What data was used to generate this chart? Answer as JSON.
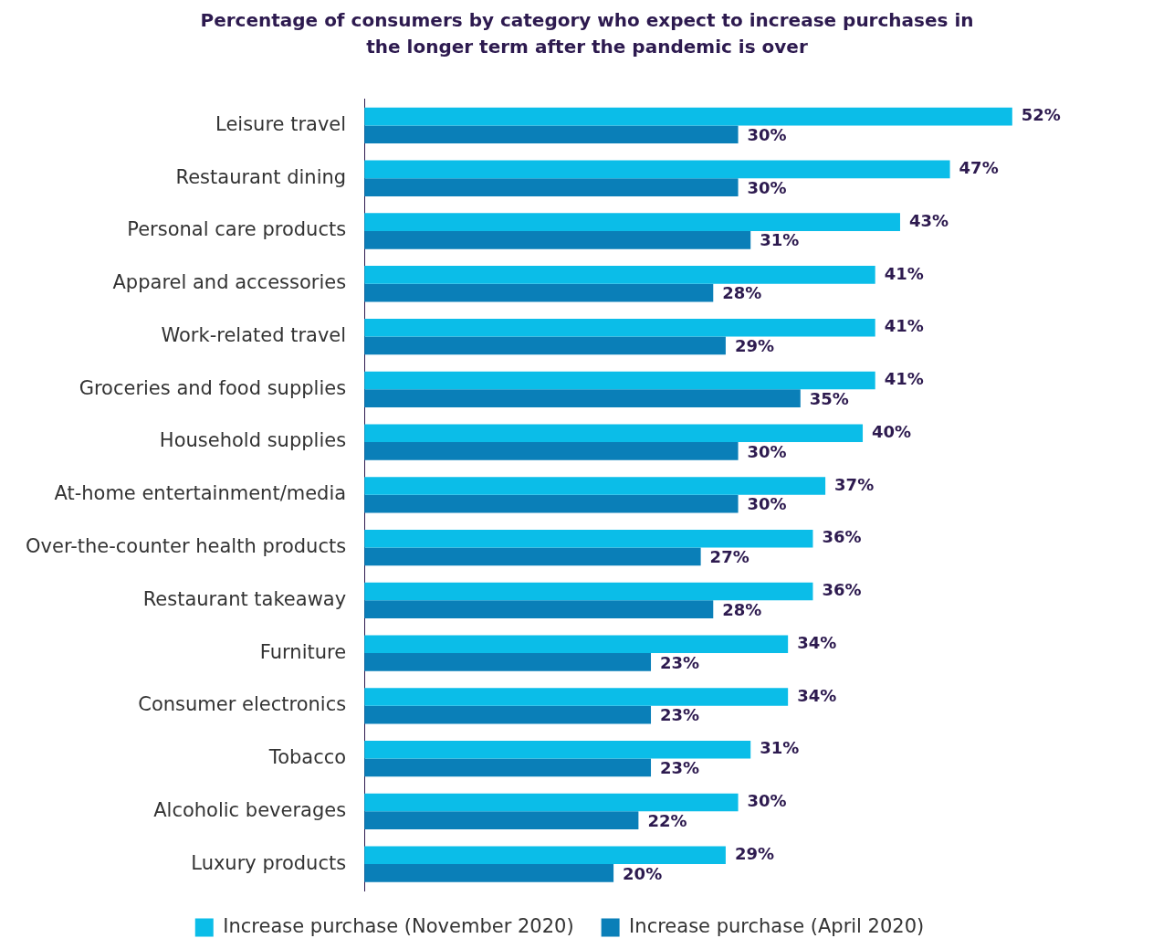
{
  "chart_data": {
    "type": "bar",
    "orientation": "horizontal",
    "title": "Percentage of consumers by category who expect to increase purchases in the longer term after the pandemic is over",
    "categories": [
      "Leisure travel",
      "Restaurant dining",
      "Personal care products",
      "Apparel and accessories",
      "Work-related travel",
      "Groceries and food supplies",
      "Household supplies",
      "At-home entertainment/media",
      "Over-the-counter health products",
      "Restaurant takeaway",
      "Furniture",
      "Consumer electronics",
      "Tobacco",
      "Alcoholic beverages",
      "Luxury products"
    ],
    "series": [
      {
        "name": "Increase purchase (November 2020)",
        "color": "#0bbde8",
        "values": [
          52,
          47,
          43,
          41,
          41,
          41,
          40,
          37,
          36,
          36,
          34,
          34,
          31,
          30,
          29
        ],
        "value_labels": [
          "52%",
          "47%",
          "43%",
          "41%",
          "41%",
          "41%",
          "40%",
          "37%",
          "36%",
          "36%",
          "34%",
          "34%",
          "31%",
          "30%",
          "29%"
        ]
      },
      {
        "name": "Increase purchase (April 2020)",
        "color": "#0a7fb8",
        "values": [
          30,
          30,
          31,
          28,
          29,
          35,
          30,
          30,
          27,
          28,
          23,
          23,
          23,
          22,
          20
        ],
        "value_labels": [
          "30%",
          "30%",
          "31%",
          "28%",
          "29%",
          "35%",
          "30%",
          "30%",
          "27%",
          "28%",
          "23%",
          "23%",
          "23%",
          "22%",
          "20%"
        ]
      }
    ],
    "legend": "bottom"
  }
}
